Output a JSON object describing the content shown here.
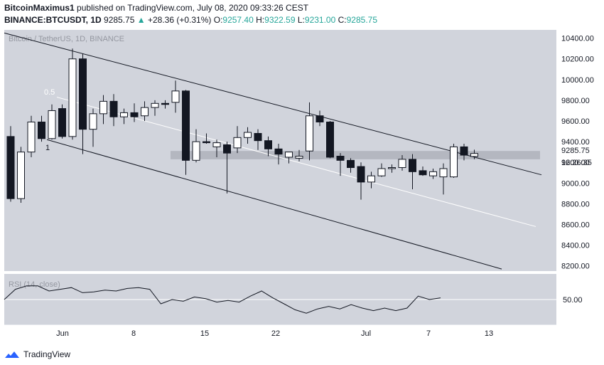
{
  "header": {
    "publisher": "BitcoinMaximus1",
    "published_text": "published on TradingView.com, July 08, 2020 09:33:26 CEST",
    "symbol": "BINANCE:BTCUSDT, 1D",
    "last": "9285.75",
    "change_arrow": "▲",
    "change": "+28.36 (+0.31%)",
    "o_label": "O:",
    "o": "9257.40",
    "h_label": "H:",
    "h": "9322.59",
    "l_label": "L:",
    "l": "9231.00",
    "c_label": "C:",
    "c": "9285.75"
  },
  "chart": {
    "watermark": "Bitcoin / TetherUS, 1D, BINANCE",
    "price_label": "9285.75",
    "countdown_label": "16:26:35",
    "fib_labels": [
      "0.5",
      "1"
    ],
    "rsi_label": "RSI (14, close)",
    "rsi_level": "50.00",
    "colors": {
      "background": "#d1d4dc",
      "up_candle": "#ffffff",
      "down_candle": "#131722",
      "channel": "#131722",
      "midline": "#ffffff",
      "zone": "#b2b5be",
      "rsi_line": "#131722"
    }
  },
  "chart_data": {
    "type": "candlestick",
    "y_ticks": [
      "10400.00",
      "10200.00",
      "10000.00",
      "9800.00",
      "9600.00",
      "9400.00",
      "9200.00",
      "9000.00",
      "8800.00",
      "8600.00",
      "8400.00",
      "8200.00"
    ],
    "x_ticks": [
      "Jun",
      "8",
      "15",
      "22",
      "Jul",
      "7",
      "13"
    ],
    "ylim": [
      8150,
      10480
    ],
    "candles": [
      {
        "date": "2020-05-31",
        "o": 9450,
        "h": 9550,
        "l": 8820,
        "c": 8850
      },
      {
        "date": "2020-06-01",
        "o": 8850,
        "h": 9350,
        "l": 8810,
        "c": 9300
      },
      {
        "date": "2020-06-02",
        "o": 9300,
        "h": 9650,
        "l": 9250,
        "c": 9590
      },
      {
        "date": "2020-06-03",
        "o": 9590,
        "h": 9650,
        "l": 9400,
        "c": 9430
      },
      {
        "date": "2020-06-04",
        "o": 9430,
        "h": 9760,
        "l": 9420,
        "c": 9700
      },
      {
        "date": "2020-06-05",
        "o": 9720,
        "h": 9760,
        "l": 9430,
        "c": 9450
      },
      {
        "date": "2020-06-06",
        "o": 9450,
        "h": 10300,
        "l": 9420,
        "c": 10200
      },
      {
        "date": "2020-06-07",
        "o": 10200,
        "h": 10250,
        "l": 9280,
        "c": 9520
      },
      {
        "date": "2020-06-08",
        "o": 9520,
        "h": 9720,
        "l": 9350,
        "c": 9670
      },
      {
        "date": "2020-06-09",
        "o": 9670,
        "h": 9850,
        "l": 9570,
        "c": 9790
      },
      {
        "date": "2020-06-10",
        "o": 9790,
        "h": 9860,
        "l": 9550,
        "c": 9640
      },
      {
        "date": "2020-06-11",
        "o": 9640,
        "h": 9720,
        "l": 9570,
        "c": 9680
      },
      {
        "date": "2020-06-12",
        "o": 9680,
        "h": 9770,
        "l": 9590,
        "c": 9640
      },
      {
        "date": "2020-06-13",
        "o": 9650,
        "h": 9790,
        "l": 9600,
        "c": 9730
      },
      {
        "date": "2020-06-14",
        "o": 9730,
        "h": 9800,
        "l": 9650,
        "c": 9770
      },
      {
        "date": "2020-06-15",
        "o": 9770,
        "h": 9800,
        "l": 9720,
        "c": 9760
      },
      {
        "date": "2020-06-16",
        "o": 9780,
        "h": 9990,
        "l": 9680,
        "c": 9890
      },
      {
        "date": "2020-06-17",
        "o": 9890,
        "h": 9900,
        "l": 9080,
        "c": 9220
      },
      {
        "date": "2020-06-18",
        "o": 9220,
        "h": 9520,
        "l": 9200,
        "c": 9400
      },
      {
        "date": "2020-06-19",
        "o": 9400,
        "h": 9480,
        "l": 9380,
        "c": 9390
      },
      {
        "date": "2020-06-20",
        "o": 9350,
        "h": 9420,
        "l": 9250,
        "c": 9390
      },
      {
        "date": "2020-06-21",
        "o": 9370,
        "h": 9400,
        "l": 8900,
        "c": 9290
      },
      {
        "date": "2020-06-22",
        "o": 9340,
        "h": 9550,
        "l": 9290,
        "c": 9440
      },
      {
        "date": "2020-06-23",
        "o": 9440,
        "h": 9540,
        "l": 9380,
        "c": 9490
      },
      {
        "date": "2020-06-24",
        "o": 9480,
        "h": 9520,
        "l": 9320,
        "c": 9410
      },
      {
        "date": "2020-06-25",
        "o": 9410,
        "h": 9450,
        "l": 9260,
        "c": 9330
      },
      {
        "date": "2020-06-26",
        "o": 9330,
        "h": 9380,
        "l": 9180,
        "c": 9280
      },
      {
        "date": "2020-06-27",
        "o": 9250,
        "h": 9300,
        "l": 9190,
        "c": 9300
      },
      {
        "date": "2020-06-28",
        "o": 9240,
        "h": 9320,
        "l": 9210,
        "c": 9260
      },
      {
        "date": "2020-06-29",
        "o": 9310,
        "h": 9780,
        "l": 9220,
        "c": 9650
      },
      {
        "date": "2020-06-30",
        "o": 9650,
        "h": 9700,
        "l": 9550,
        "c": 9590
      },
      {
        "date": "2020-07-01",
        "o": 9590,
        "h": 9600,
        "l": 9240,
        "c": 9250
      },
      {
        "date": "2020-07-02",
        "o": 9260,
        "h": 9290,
        "l": 9070,
        "c": 9220
      },
      {
        "date": "2020-07-03",
        "o": 9220,
        "h": 9240,
        "l": 9100,
        "c": 9150
      },
      {
        "date": "2020-07-04",
        "o": 9160,
        "h": 9200,
        "l": 8840,
        "c": 9010
      },
      {
        "date": "2020-07-05",
        "o": 9010,
        "h": 9110,
        "l": 8950,
        "c": 9070
      },
      {
        "date": "2020-07-06",
        "o": 9070,
        "h": 9190,
        "l": 9060,
        "c": 9140
      },
      {
        "date": "2020-07-07",
        "o": 9140,
        "h": 9180,
        "l": 9100,
        "c": 9150
      },
      {
        "date": "2020-07-08",
        "o": 9150,
        "h": 9270,
        "l": 9120,
        "c": 9230
      },
      {
        "date": "2020-07-09",
        "o": 9230,
        "h": 9280,
        "l": 8940,
        "c": 9110
      },
      {
        "date": "2020-07-10",
        "o": 9120,
        "h": 9160,
        "l": 9070,
        "c": 9080
      },
      {
        "date": "2020-07-11",
        "o": 9070,
        "h": 9140,
        "l": 9040,
        "c": 9110
      },
      {
        "date": "2020-07-12",
        "o": 9060,
        "h": 9190,
        "l": 8890,
        "c": 9140
      },
      {
        "date": "2020-07-13",
        "o": 9060,
        "h": 9380,
        "l": 9050,
        "c": 9350
      },
      {
        "date": "2020-07-14",
        "o": 9350,
        "h": 9380,
        "l": 9220,
        "c": 9270
      },
      {
        "date": "2020-07-15",
        "o": 9257,
        "h": 9323,
        "l": 9231,
        "c": 9286
      }
    ],
    "rsi": [
      {
        "date": "2020-05-31",
        "v": 50
      },
      {
        "date": "2020-06-03",
        "v": 62
      },
      {
        "date": "2020-06-05",
        "v": 66
      },
      {
        "date": "2020-06-07",
        "v": 66
      },
      {
        "date": "2020-06-09",
        "v": 60
      },
      {
        "date": "2020-06-11",
        "v": 62
      },
      {
        "date": "2020-06-13",
        "v": 64
      },
      {
        "date": "2020-06-15",
        "v": 58
      },
      {
        "date": "2020-06-17",
        "v": 59
      },
      {
        "date": "2020-06-19",
        "v": 61
      },
      {
        "date": "2020-06-21",
        "v": 60
      },
      {
        "date": "2020-06-23",
        "v": 63
      },
      {
        "date": "2020-06-25",
        "v": 64
      },
      {
        "date": "2020-06-27",
        "v": 62
      },
      {
        "date": "2020-06-30",
        "v": 45
      },
      {
        "date": "2020-07-02",
        "v": 50
      },
      {
        "date": "2020-07-04",
        "v": 48
      },
      {
        "date": "2020-07-06",
        "v": 53
      },
      {
        "date": "2020-07-08",
        "v": 51
      },
      {
        "date": "2020-07-10",
        "v": 47
      },
      {
        "date": "2020-07-12",
        "v": 49
      },
      {
        "date": "2020-07-14",
        "v": 47
      },
      {
        "date": "2020-07-16",
        "v": 54
      },
      {
        "date": "2020-07-18",
        "v": 60
      },
      {
        "date": "2020-07-20",
        "v": 52
      },
      {
        "date": "2020-07-22",
        "v": 45
      },
      {
        "date": "2020-07-24",
        "v": 38
      },
      {
        "date": "2020-07-26",
        "v": 34
      },
      {
        "date": "2020-07-28",
        "v": 39
      },
      {
        "date": "2020-07-30",
        "v": 42
      },
      {
        "date": "2020-08-01",
        "v": 39
      },
      {
        "date": "2020-08-03",
        "v": 44
      },
      {
        "date": "2020-08-05",
        "v": 40
      },
      {
        "date": "2020-08-07",
        "v": 37
      },
      {
        "date": "2020-08-09",
        "v": 40
      },
      {
        "date": "2020-08-11",
        "v": 37
      },
      {
        "date": "2020-08-13",
        "v": 40
      },
      {
        "date": "2020-08-15",
        "v": 54
      },
      {
        "date": "2020-08-17",
        "v": 50
      },
      {
        "date": "2020-08-19",
        "v": 52
      }
    ]
  },
  "footer": {
    "brand": "TradingView"
  }
}
